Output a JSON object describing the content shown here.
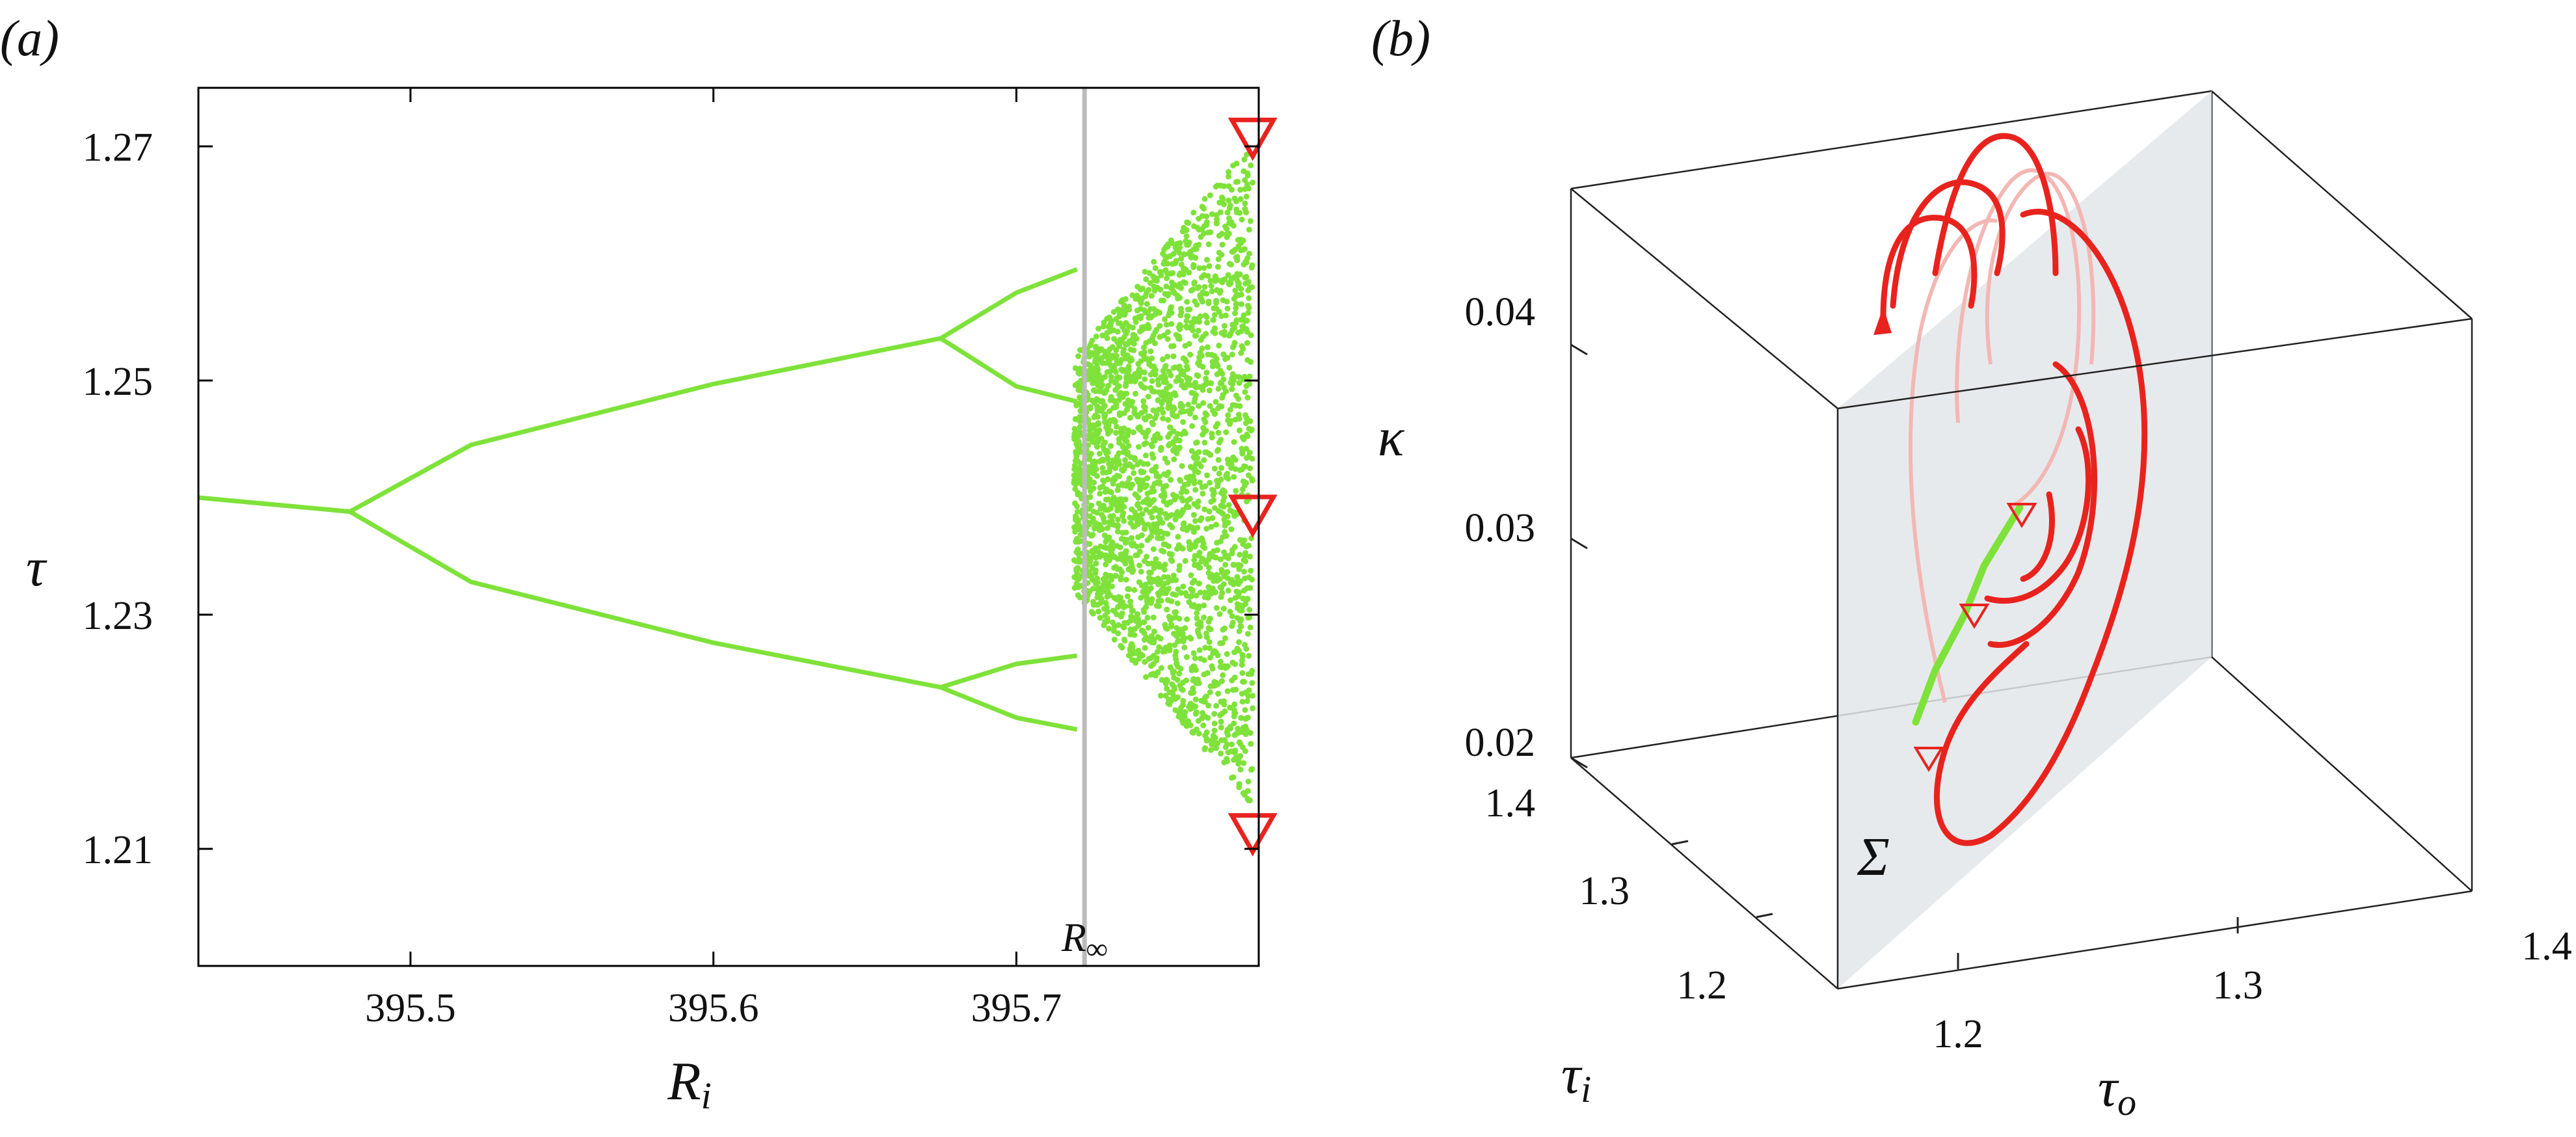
{
  "chart_data": [
    {
      "panel": "(a)",
      "type": "scatter",
      "xlabel_base": "R",
      "xlabel_sub": "i",
      "ylabel": "τ",
      "xlim": [
        395.43,
        395.78
      ],
      "ylim": [
        1.2,
        1.275
      ],
      "xticks": [
        "395.5",
        "395.6",
        "395.7"
      ],
      "yticks": [
        "1.27",
        "1.25",
        "1.23",
        "1.21"
      ],
      "xtick_values": [
        395.5,
        395.6,
        395.7
      ],
      "ytick_values": [
        1.27,
        1.25,
        1.23,
        1.21
      ],
      "series": [
        {
          "color": "#7fe23a",
          "branches": [
            {
              "x": [
                395.43,
                395.48
              ],
              "y": [
                1.24,
                1.2388
              ]
            },
            {
              "x": [
                395.48,
                395.52,
                395.6,
                395.675
              ],
              "y": [
                1.2388,
                1.2445,
                1.2497,
                1.2536
              ]
            },
            {
              "x": [
                395.48,
                395.52,
                395.6,
                395.675
              ],
              "y": [
                1.2388,
                1.2328,
                1.2276,
                1.2238
              ]
            },
            {
              "x": [
                395.675,
                395.7,
                395.72
              ],
              "y": [
                1.2536,
                1.2575,
                1.2595
              ]
            },
            {
              "x": [
                395.675,
                395.7,
                395.72
              ],
              "y": [
                1.2536,
                1.2495,
                1.2482
              ]
            },
            {
              "x": [
                395.675,
                395.7,
                395.72
              ],
              "y": [
                1.2238,
                1.2258,
                1.2265
              ]
            },
            {
              "x": [
                395.675,
                395.7,
                395.72
              ],
              "y": [
                1.2238,
                1.2212,
                1.2202
              ]
            }
          ],
          "chaotic_bands": [
            {
              "x_range": [
                395.719,
                395.778
              ],
              "y_range": [
                1.2135,
                1.2705
              ]
            }
          ]
        }
      ],
      "vertical_line": {
        "x": 395.7225,
        "color": "#bbbbbb",
        "label_base": "R",
        "label_sub": "∞"
      },
      "markers": [
        {
          "x": 395.778,
          "y": 1.2707,
          "shape": "triangle-down",
          "color": "#e8231e"
        },
        {
          "x": 395.778,
          "y": 1.2385,
          "shape": "triangle-down",
          "color": "#e8231e"
        },
        {
          "x": 395.778,
          "y": 1.2113,
          "shape": "triangle-down",
          "color": "#e8231e"
        }
      ]
    },
    {
      "panel": "(b)",
      "type": "line",
      "kappa_label": "κ",
      "tau_i_label_base": "τ",
      "tau_i_label_sub": "i",
      "tau_o_label_base": "τ",
      "tau_o_label_sub": "o",
      "kappa_ticks": [
        "0.04",
        "0.03",
        "0.02"
      ],
      "tau_i_ticks": [
        "1.4",
        "1.3",
        "1.2"
      ],
      "tau_o_ticks": [
        "1.2",
        "1.3",
        "1.4"
      ],
      "plane_label": "Σ",
      "attractor_color": "#e8231e",
      "section_color": "#7fe23a",
      "section_markers": 3
    }
  ],
  "colors": {
    "green": "#7fe23a",
    "red": "#e8231e",
    "line_gray": "#bbbbbb",
    "plane": "#e3e6e9"
  }
}
